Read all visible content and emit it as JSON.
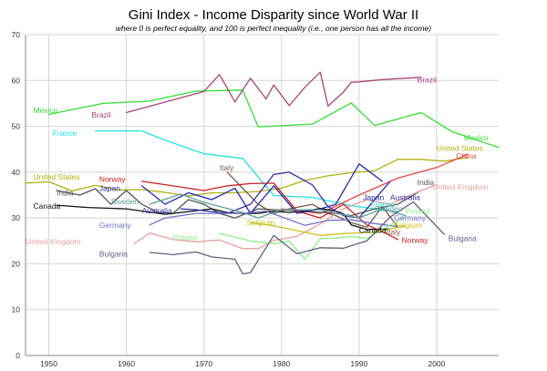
{
  "chart_data": {
    "type": "line",
    "title": "Gini Index - Income Disparity since World War II",
    "subtitle": "where 0 is perfect equality, and 100 is perfect inequality (i.e., one person has all the income)",
    "xlabel": "",
    "ylabel": "",
    "xlim": [
      1947,
      2008
    ],
    "ylim": [
      0,
      70
    ],
    "x_ticks": [
      1950,
      1960,
      1970,
      1980,
      1990,
      2000
    ],
    "y_ticks": [
      0,
      10,
      20,
      30,
      40,
      50,
      60,
      70
    ],
    "grid": true,
    "legend": "none (labels placed next to lines)",
    "series": [
      {
        "name": "Mexico",
        "color": "#33dd33",
        "x": [
          1950,
          1957,
          1963,
          1969,
          1975,
          1977,
          1984,
          1989,
          1992,
          1998,
          2002,
          2008
        ],
        "y": [
          52.6,
          55,
          55.5,
          57.7,
          57.9,
          49.9,
          50.5,
          55.1,
          50.2,
          53,
          48.8,
          45.4
        ],
        "labels": [
          {
            "text": "Mexico",
            "x": 1948,
            "y": 53.5
          },
          {
            "text": "Mexico",
            "x": 2003.5,
            "y": 47.5
          }
        ]
      },
      {
        "name": "Brazil",
        "color": "#a84477",
        "x": [
          1960,
          1970,
          1972,
          1974,
          1976,
          1978,
          1979,
          1981,
          1983,
          1985,
          1986,
          1988,
          1989,
          1990,
          1993,
          1998
        ],
        "y": [
          53,
          57.6,
          61.3,
          55.3,
          60.5,
          56,
          59,
          54.5,
          58.5,
          61.8,
          54.4,
          57.5,
          59.6,
          59.7,
          60.2,
          60.7
        ],
        "labels": [
          {
            "text": "Brazil",
            "x": 1955.5,
            "y": 52.5
          },
          {
            "text": "Brazil",
            "x": 1997.5,
            "y": 60.2
          }
        ]
      },
      {
        "name": "France",
        "color": "#22e0e0",
        "x": [
          1956,
          1962,
          1965,
          1970,
          1975,
          1979,
          1984,
          1989,
          1995
        ],
        "y": [
          49,
          49,
          47,
          44,
          43,
          34.9,
          34.5,
          32.7,
          31.3
        ],
        "labels": [
          {
            "text": "France",
            "x": 1950.5,
            "y": 48.5
          },
          {
            "text": "France",
            "x": 1991.5,
            "y": 33
          }
        ]
      },
      {
        "name": "United States",
        "color": "#b0b010",
        "x": [
          1947,
          1950,
          1953,
          1956,
          1959,
          1962,
          1965,
          1968,
          1971,
          1974,
          1977,
          1980,
          1983,
          1986,
          1989,
          1992,
          1995,
          1998,
          2001,
          2004
        ],
        "y": [
          37.6,
          37.9,
          35.9,
          37.1,
          36.1,
          36.2,
          35.6,
          34.8,
          35.5,
          35.5,
          35.8,
          36.5,
          38.2,
          39.2,
          39.9,
          40.3,
          42.8,
          42.8,
          42.4,
          43.2
        ],
        "labels": [
          {
            "text": "United States",
            "x": 1948,
            "y": 39
          },
          {
            "text": "United States",
            "x": 2000,
            "y": 45.2
          }
        ]
      },
      {
        "name": "China",
        "color": "#e04848",
        "x": [
          1980,
          1985,
          1990,
          1995,
          2000,
          2004
        ],
        "y": [
          32,
          31,
          35,
          38.7,
          41,
          43.9
        ],
        "labels": [
          {
            "text": "China",
            "x": 2002.5,
            "y": 43.6
          }
        ]
      },
      {
        "name": "Italy",
        "color": "#7a5a4a",
        "x": [
          1973,
          1975,
          1977,
          1979,
          1981,
          1984,
          1986,
          1987,
          1989,
          1991,
          1993,
          1995
        ],
        "y": [
          40,
          36.5,
          33,
          31,
          32,
          33,
          31,
          30.5,
          29,
          28,
          32.5,
          28
        ],
        "labels": [
          {
            "text": "Italy",
            "x": 1972,
            "y": 41
          },
          {
            "text": "Italy",
            "x": 1993.5,
            "y": 26.9
          }
        ]
      },
      {
        "name": "India",
        "color": "#555555",
        "x": [
          1951,
          1954,
          1956,
          1958,
          1960,
          1962,
          1964,
          1966,
          1968,
          1970,
          1972,
          1974,
          1977,
          1983,
          1987,
          1989,
          1992,
          1995,
          1998
        ],
        "y": [
          36,
          35,
          36.4,
          33,
          36,
          33,
          31.3,
          31,
          34,
          33,
          31,
          30,
          32,
          31.5,
          31,
          30.5,
          32,
          33,
          36
        ],
        "labels": [
          {
            "text": "India",
            "x": 1951,
            "y": 35.5
          },
          {
            "text": "India",
            "x": 1997.5,
            "y": 37.8
          }
        ]
      },
      {
        "name": "United Kingdom",
        "color": "#e8a0a0",
        "x": [
          1961,
          1963,
          1966,
          1969,
          1972,
          1975,
          1977,
          1979,
          1982,
          1985,
          1988,
          1991,
          1994,
          1998,
          2000
        ],
        "y": [
          24.4,
          26.7,
          25.3,
          24.8,
          25.2,
          23.3,
          23.3,
          25.1,
          26,
          28.7,
          32,
          34,
          33,
          36,
          37.2
        ],
        "labels": [
          {
            "text": "United Kingdom",
            "x": 1947,
            "y": 24.9
          },
          {
            "text": "United Kingdom",
            "x": 1999.5,
            "y": 36.8
          }
        ]
      },
      {
        "name": "Canada",
        "color": "#111111",
        "x": [
          1951,
          1955,
          1960,
          1965,
          1971,
          1973,
          1975,
          1977,
          1979,
          1981,
          1983,
          1985,
          1987,
          1988,
          1989,
          1990,
          1991,
          1994
        ],
        "y": [
          32.8,
          32.3,
          32,
          30.8,
          32,
          31.2,
          31,
          31,
          31.5,
          31.2,
          31.5,
          32.1,
          31.5,
          30.9,
          28.5,
          28,
          27.5,
          27.6
        ],
        "labels": [
          {
            "text": "Canada",
            "x": 1948,
            "y": 32.6
          },
          {
            "text": "Canada",
            "x": 1990,
            "y": 27.3
          }
        ]
      },
      {
        "name": "Norway",
        "color": "#c82020",
        "x": [
          1962,
          1966,
          1970,
          1973,
          1976,
          1979,
          1982,
          1985,
          1988,
          1991,
          1993,
          1995
        ],
        "y": [
          38,
          37,
          36,
          37,
          37.5,
          37.6,
          31.5,
          30,
          33,
          28.5,
          27,
          25.3
        ],
        "labels": [
          {
            "text": "Norway",
            "x": 1956.5,
            "y": 38.5
          },
          {
            "text": "Norway",
            "x": 1995.5,
            "y": 25.2
          }
        ]
      },
      {
        "name": "Japan",
        "color": "#2828b0",
        "x": [
          1962,
          1965,
          1968,
          1971,
          1974,
          1976,
          1979,
          1982,
          1985,
          1987,
          1990,
          1993
        ],
        "y": [
          37,
          33,
          35.5,
          34,
          36.5,
          31,
          37,
          31,
          32,
          33,
          41.8,
          38
        ],
        "labels": [
          {
            "text": "Japan",
            "x": 1956.5,
            "y": 36.5
          },
          {
            "text": "Japan",
            "x": 1990.5,
            "y": 34.5
          }
        ]
      },
      {
        "name": "Australia",
        "color": "#3030a0",
        "x": [
          1967,
          1969,
          1973,
          1976,
          1979,
          1981,
          1984,
          1986,
          1988,
          1990,
          1994
        ],
        "y": [
          32,
          31.8,
          31,
          33,
          39.5,
          40,
          37.2,
          32.5,
          30.5,
          30,
          38
        ],
        "labels": [
          {
            "text": "Australia",
            "x": 1962,
            "y": 31.6
          },
          {
            "text": "Australia",
            "x": 1994,
            "y": 34.5
          }
        ]
      },
      {
        "name": "Sweden",
        "color": "#60a0a0",
        "x": [
          1963,
          1967,
          1970,
          1975,
          1977,
          1980,
          1985,
          1990,
          1993,
          1996
        ],
        "y": [
          33,
          35.2,
          33.4,
          31.2,
          30,
          31.8,
          31.8,
          30,
          32,
          30.5
        ],
        "labels": [
          {
            "text": "Sweden",
            "x": 1958,
            "y": 33.6
          },
          {
            "text": "Sweden",
            "x": 1992,
            "y": 32
          }
        ]
      },
      {
        "name": "Germany",
        "color": "#7070c8",
        "x": [
          1963,
          1965,
          1969,
          1973,
          1975,
          1978,
          1983,
          1986,
          1989,
          1992,
          1995
        ],
        "y": [
          28.5,
          30,
          31,
          31,
          31,
          31.5,
          28.4,
          29.5,
          29.6,
          28.8,
          28.1
        ],
        "labels": [
          {
            "text": "Germany",
            "x": 1956.5,
            "y": 28.4
          },
          {
            "text": "Germany",
            "x": 1994.5,
            "y": 30
          }
        ]
      },
      {
        "name": "Poland",
        "color": "#90ee90",
        "x": [
          1972,
          1976,
          1979,
          1981,
          1983,
          1985,
          1987,
          1989,
          1991,
          1993,
          1996
        ],
        "y": [
          26.6,
          25,
          24.4,
          25,
          21,
          25.5,
          25.6,
          26,
          25.5,
          27.5,
          30.3
        ],
        "labels": [
          {
            "text": "Poland",
            "x": 1966,
            "y": 25.8
          },
          {
            "text": "Poland",
            "x": 1996,
            "y": 31.5
          }
        ]
      },
      {
        "name": "Belgium",
        "color": "#c8c020",
        "x": [
          1979,
          1985,
          1988,
          1992,
          1996
        ],
        "y": [
          28.3,
          26.2,
          26.6,
          26.9,
          28.3
        ],
        "labels": [
          {
            "text": "Belgium",
            "x": 1994.5,
            "y": 28.4
          }
        ]
      },
      {
        "name": "Selgium",
        "color": "#c8c020",
        "x": [
          1976,
          1979
        ],
        "y": [
          29,
          28.3
        ],
        "labels": [
          {
            "text": "Selgium",
            "x": 1975.5,
            "y": 29
          }
        ]
      },
      {
        "name": "Bulgaria",
        "color": "#606080",
        "x": [
          1963,
          1966,
          1969,
          1971,
          1974,
          1975,
          1976,
          1979,
          1982,
          1985,
          1988,
          1991,
          1994,
          1997,
          2001
        ],
        "y": [
          22.5,
          22,
          22.6,
          21.5,
          21,
          17.8,
          18.1,
          26.2,
          22.2,
          23.5,
          23.4,
          25,
          30.2,
          33.5,
          26.4
        ],
        "labels": [
          {
            "text": "Bulgaria",
            "x": 1956.5,
            "y": 22.2
          },
          {
            "text": "Bulgaria",
            "x": 2001.5,
            "y": 25.6
          }
        ]
      }
    ]
  }
}
